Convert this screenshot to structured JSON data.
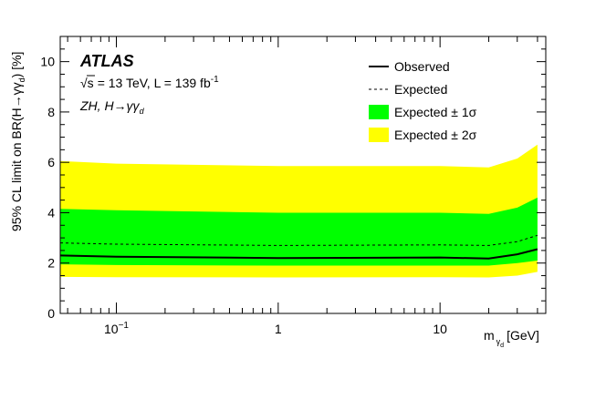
{
  "chart_data": {
    "type": "area",
    "xscale": "log",
    "xlim": [
      0.045,
      45
    ],
    "ylim": [
      0,
      11
    ],
    "xlabel": "m",
    "xlabel_sub": "γ",
    "xlabel_subsub": "d",
    "xlabel_unit": "[GeV]",
    "ylabel_main": "95% CL limit on BR(H→γγ",
    "ylabel_sub": "d",
    "ylabel_close": ") [%]",
    "x_tick_labels": [
      {
        "x": 0.1,
        "base": "10",
        "exp": "−1"
      },
      {
        "x": 1,
        "base": "1",
        "exp": ""
      },
      {
        "x": 10,
        "base": "10",
        "exp": ""
      }
    ],
    "y_ticks": [
      0,
      2,
      4,
      6,
      8,
      10
    ],
    "atlas_label": "ATLAS",
    "energy_label": "= 13 TeV, L = 139 fb",
    "energy_sqrt": "√s",
    "lumi_exp": "-1",
    "process_label": "ZH, H→γγ",
    "process_sub": "d",
    "legend": [
      {
        "label": "Observed",
        "style": "line-solid"
      },
      {
        "label": "Expected",
        "style": "line-dashed"
      },
      {
        "label": "Expected ± 1σ",
        "style": "fill",
        "color": "#00ff00"
      },
      {
        "label": "Expected ± 2σ",
        "style": "fill",
        "color": "#ffff00"
      }
    ],
    "x": [
      0.045,
      0.1,
      1,
      10,
      20,
      30,
      40
    ],
    "series": [
      {
        "name": "Observed",
        "values": [
          2.3,
          2.25,
          2.2,
          2.22,
          2.18,
          2.35,
          2.55
        ]
      },
      {
        "name": "Expected",
        "values": [
          2.8,
          2.75,
          2.7,
          2.72,
          2.7,
          2.85,
          3.1
        ]
      },
      {
        "name": "Expected ± 1σ",
        "lower": [
          1.95,
          1.92,
          1.9,
          1.9,
          1.9,
          2.0,
          2.1
        ],
        "upper": [
          4.15,
          4.1,
          4.0,
          4.0,
          3.95,
          4.2,
          4.6
        ]
      },
      {
        "name": "Expected ± 2σ",
        "lower": [
          1.45,
          1.44,
          1.43,
          1.44,
          1.43,
          1.5,
          1.65
        ],
        "upper": [
          6.05,
          5.95,
          5.85,
          5.85,
          5.8,
          6.15,
          6.7
        ]
      }
    ],
    "colors": {
      "band2": "#ffff00",
      "band1": "#00ff00",
      "line": "#000000"
    },
    "grid": false,
    "legend_position": "top-right"
  }
}
